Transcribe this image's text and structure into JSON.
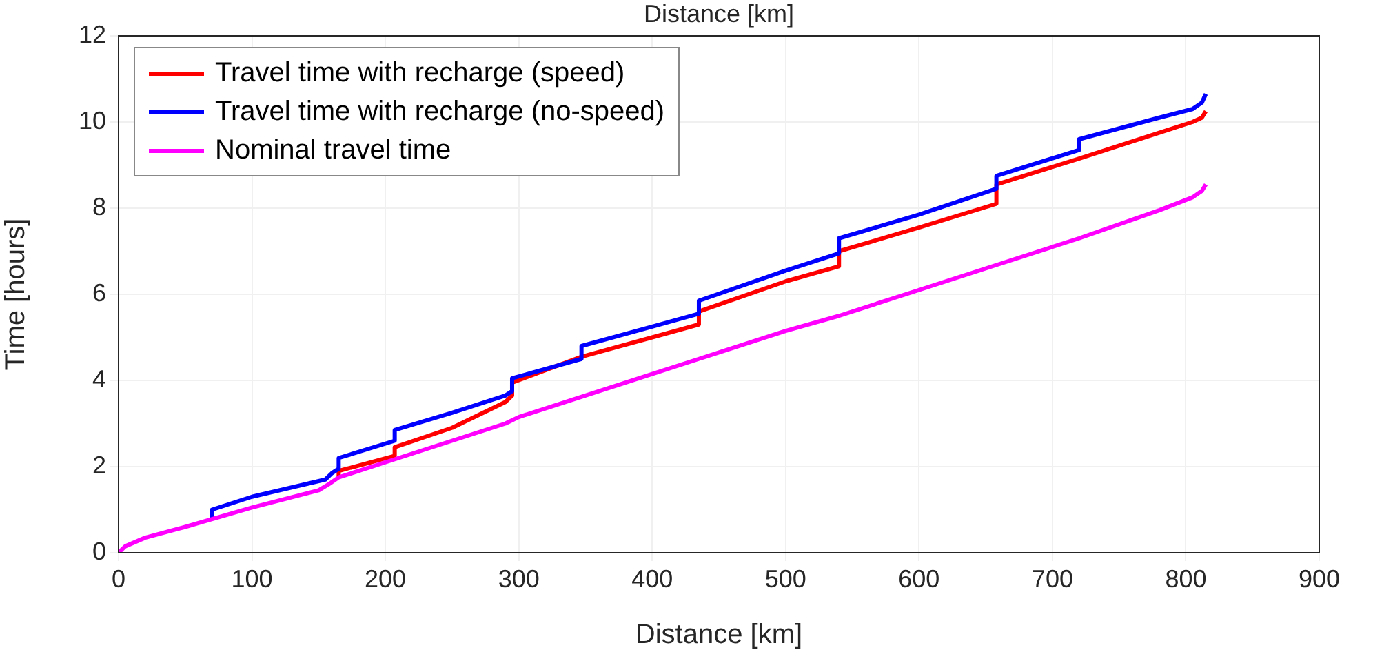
{
  "chart_data": {
    "type": "line",
    "title": "Distance [km]",
    "xlabel": "Distance [km]",
    "ylabel": "Time [hours]",
    "xlim": [
      0,
      900
    ],
    "xticks": [
      0,
      100,
      200,
      300,
      400,
      500,
      600,
      700,
      800,
      900
    ],
    "ylim": [
      0,
      12
    ],
    "yticks": [
      0,
      2,
      4,
      6,
      8,
      10,
      12
    ],
    "grid": true,
    "legend": "top left",
    "marker": "none",
    "line_style": "solid",
    "series": [
      {
        "name": "Travel time with recharge (speed)",
        "color": "#ff0000",
        "x": [
          165,
          165,
          207,
          207,
          250,
          290,
          295,
          295,
          347,
          400,
          435,
          435,
          500,
          540,
          540,
          600,
          658,
          658,
          720,
          780,
          805,
          812,
          815
        ],
        "values": [
          1.75,
          1.9,
          2.25,
          2.45,
          2.9,
          3.5,
          3.65,
          3.95,
          4.55,
          5.0,
          5.3,
          5.6,
          6.3,
          6.65,
          7.0,
          7.55,
          8.1,
          8.55,
          9.15,
          9.75,
          10.0,
          10.1,
          10.25
        ]
      },
      {
        "name": "Travel time with recharge (no-speed)",
        "color": "#0000ff",
        "x": [
          70,
          70,
          100,
          155,
          160,
          165,
          165,
          207,
          207,
          250,
          290,
          295,
          295,
          347,
          347,
          400,
          435,
          435,
          500,
          540,
          540,
          600,
          658,
          658,
          720,
          720,
          780,
          805,
          812,
          815
        ],
        "values": [
          0.8,
          1.0,
          1.3,
          1.7,
          1.85,
          1.95,
          2.2,
          2.6,
          2.85,
          3.25,
          3.65,
          3.75,
          4.05,
          4.5,
          4.8,
          5.25,
          5.55,
          5.85,
          6.55,
          6.95,
          7.3,
          7.85,
          8.45,
          8.75,
          9.35,
          9.6,
          10.1,
          10.3,
          10.45,
          10.65
        ]
      },
      {
        "name": "Nominal travel time",
        "color": "#ff00ff",
        "x": [
          0,
          5,
          20,
          50,
          100,
          150,
          158,
          165,
          200,
          250,
          290,
          300,
          350,
          400,
          435,
          460,
          500,
          540,
          600,
          660,
          720,
          780,
          805,
          812,
          815
        ],
        "values": [
          0,
          0.15,
          0.35,
          0.6,
          1.05,
          1.45,
          1.6,
          1.75,
          2.1,
          2.6,
          3.0,
          3.15,
          3.65,
          4.15,
          4.5,
          4.75,
          5.15,
          5.5,
          6.1,
          6.7,
          7.3,
          7.95,
          8.25,
          8.4,
          8.55
        ]
      }
    ]
  }
}
